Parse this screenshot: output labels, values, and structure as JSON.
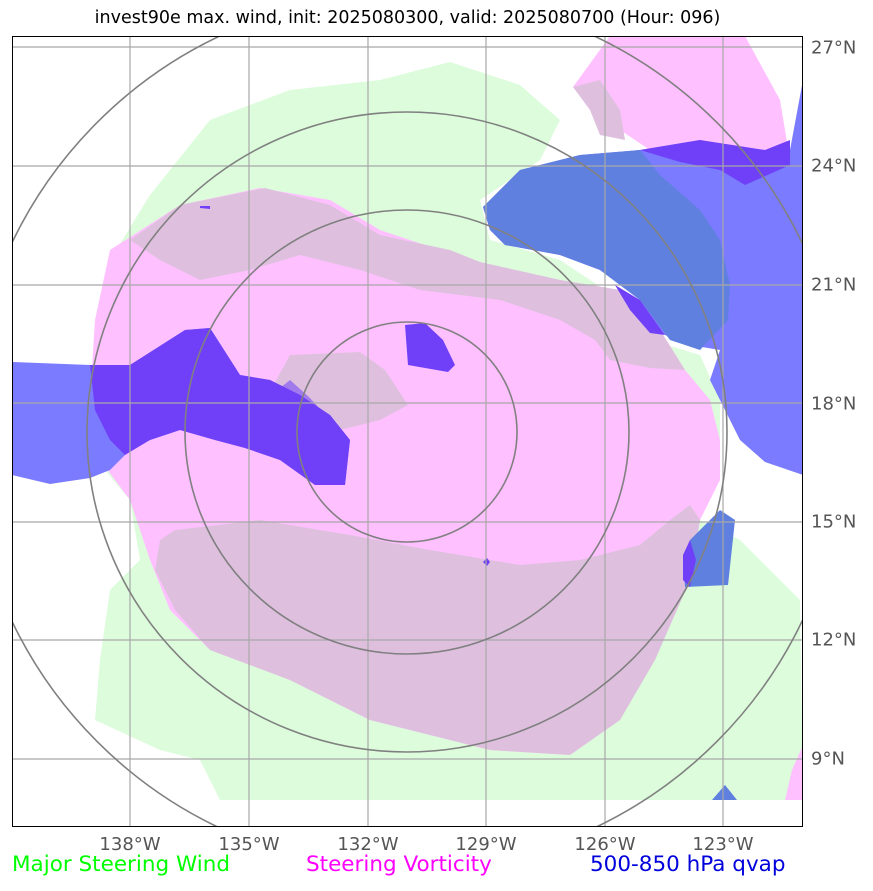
{
  "title": "invest90e max. wind, init: 2025080300, valid: 2025080700 (Hour: 096)",
  "map": {
    "latitude_labels": [
      "27°N",
      "24°N",
      "21°N",
      "18°N",
      "15°N",
      "12°N",
      "9°N"
    ],
    "longitude_labels": [
      "138°W",
      "135°W",
      "132°W",
      "129°W",
      "126°W",
      "123°W"
    ]
  },
  "legend": {
    "major_steering_wind": {
      "label": "Major Steering Wind",
      "color": "#00ff00"
    },
    "steering_vorticity": {
      "label": "Steering Vorticity",
      "color": "#ff00ff"
    },
    "qvap": {
      "label": "500-850 hPa qvap",
      "color": "#0000dd"
    }
  },
  "colors": {
    "wind_fill": "#dcfcdc",
    "vorticity_fill": "#ffc0ff",
    "overlap_fill": "#dec0de",
    "qvap_fill": "#7b7bff",
    "qvap_dark_fill": "#7040f8",
    "qvap_mid_fill": "#6080e0",
    "grid": "#a8a8a8",
    "range_rings": "#808080"
  }
}
